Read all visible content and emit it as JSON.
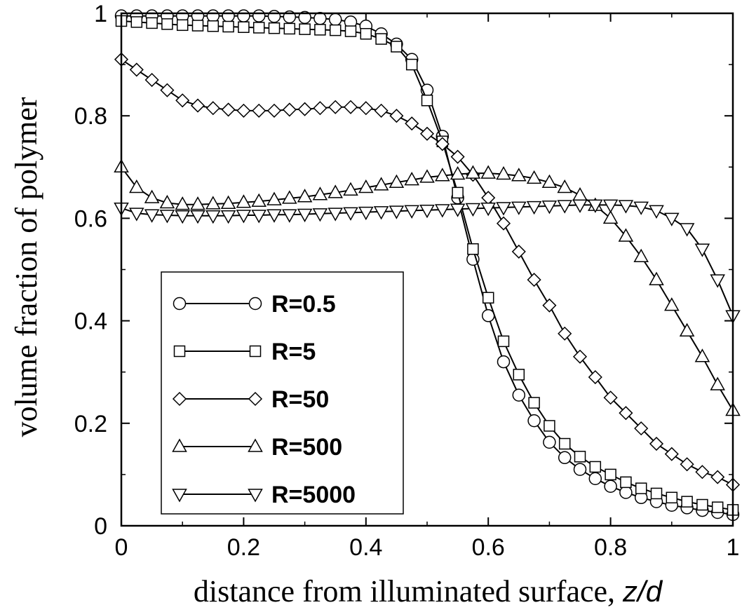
{
  "chart_data": {
    "type": "line",
    "xlabel": "distance from illuminated surface, ",
    "xlabel_var": "z/d",
    "ylabel": "volume fraction of polymer",
    "xlim": [
      0,
      1
    ],
    "ylim": [
      0,
      1
    ],
    "x_ticks": [
      "0",
      "0.2",
      "0.4",
      "0.6",
      "0.8",
      "1"
    ],
    "y_ticks": [
      "0",
      "0.2",
      "0.4",
      "0.6",
      "0.8",
      "1"
    ],
    "legend_position": "lower-left",
    "series": [
      {
        "name": "R=0.5",
        "marker": "circle",
        "points": [
          [
            0,
            0.995
          ],
          [
            0.025,
            0.995
          ],
          [
            0.05,
            0.995
          ],
          [
            0.075,
            0.995
          ],
          [
            0.1,
            0.995
          ],
          [
            0.125,
            0.995
          ],
          [
            0.15,
            0.995
          ],
          [
            0.175,
            0.995
          ],
          [
            0.2,
            0.995
          ],
          [
            0.225,
            0.995
          ],
          [
            0.25,
            0.994
          ],
          [
            0.275,
            0.993
          ],
          [
            0.3,
            0.992
          ],
          [
            0.325,
            0.99
          ],
          [
            0.35,
            0.988
          ],
          [
            0.375,
            0.983
          ],
          [
            0.4,
            0.975
          ],
          [
            0.425,
            0.96
          ],
          [
            0.45,
            0.94
          ],
          [
            0.475,
            0.91
          ],
          [
            0.5,
            0.85
          ],
          [
            0.525,
            0.76
          ],
          [
            0.55,
            0.64
          ],
          [
            0.575,
            0.52
          ],
          [
            0.6,
            0.41
          ],
          [
            0.625,
            0.32
          ],
          [
            0.65,
            0.255
          ],
          [
            0.675,
            0.205
          ],
          [
            0.7,
            0.163
          ],
          [
            0.725,
            0.133
          ],
          [
            0.75,
            0.11
          ],
          [
            0.775,
            0.092
          ],
          [
            0.8,
            0.077
          ],
          [
            0.825,
            0.065
          ],
          [
            0.85,
            0.055
          ],
          [
            0.875,
            0.047
          ],
          [
            0.9,
            0.04
          ],
          [
            0.925,
            0.035
          ],
          [
            0.95,
            0.03
          ],
          [
            0.975,
            0.026
          ],
          [
            1,
            0.022
          ]
        ]
      },
      {
        "name": "R=5",
        "marker": "square",
        "points": [
          [
            0,
            0.985
          ],
          [
            0.025,
            0.983
          ],
          [
            0.05,
            0.981
          ],
          [
            0.075,
            0.979
          ],
          [
            0.1,
            0.977
          ],
          [
            0.125,
            0.976
          ],
          [
            0.15,
            0.975
          ],
          [
            0.175,
            0.974
          ],
          [
            0.2,
            0.973
          ],
          [
            0.225,
            0.972
          ],
          [
            0.25,
            0.971
          ],
          [
            0.275,
            0.97
          ],
          [
            0.3,
            0.969
          ],
          [
            0.325,
            0.968
          ],
          [
            0.35,
            0.967
          ],
          [
            0.375,
            0.965
          ],
          [
            0.4,
            0.96
          ],
          [
            0.425,
            0.95
          ],
          [
            0.45,
            0.935
          ],
          [
            0.475,
            0.9
          ],
          [
            0.5,
            0.83
          ],
          [
            0.525,
            0.75
          ],
          [
            0.55,
            0.65
          ],
          [
            0.575,
            0.54
          ],
          [
            0.6,
            0.445
          ],
          [
            0.625,
            0.36
          ],
          [
            0.65,
            0.295
          ],
          [
            0.675,
            0.24
          ],
          [
            0.7,
            0.195
          ],
          [
            0.725,
            0.16
          ],
          [
            0.75,
            0.135
          ],
          [
            0.775,
            0.115
          ],
          [
            0.8,
            0.1
          ],
          [
            0.825,
            0.085
          ],
          [
            0.85,
            0.073
          ],
          [
            0.875,
            0.063
          ],
          [
            0.9,
            0.055
          ],
          [
            0.925,
            0.047
          ],
          [
            0.95,
            0.041
          ],
          [
            0.975,
            0.036
          ],
          [
            1,
            0.031
          ]
        ]
      },
      {
        "name": "R=50",
        "marker": "diamond",
        "points": [
          [
            0,
            0.91
          ],
          [
            0.025,
            0.89
          ],
          [
            0.05,
            0.87
          ],
          [
            0.075,
            0.85
          ],
          [
            0.1,
            0.83
          ],
          [
            0.125,
            0.82
          ],
          [
            0.15,
            0.815
          ],
          [
            0.175,
            0.812
          ],
          [
            0.2,
            0.81
          ],
          [
            0.225,
            0.81
          ],
          [
            0.25,
            0.81
          ],
          [
            0.275,
            0.812
          ],
          [
            0.3,
            0.813
          ],
          [
            0.325,
            0.815
          ],
          [
            0.35,
            0.817
          ],
          [
            0.375,
            0.817
          ],
          [
            0.4,
            0.815
          ],
          [
            0.425,
            0.81
          ],
          [
            0.45,
            0.8
          ],
          [
            0.475,
            0.785
          ],
          [
            0.5,
            0.765
          ],
          [
            0.525,
            0.745
          ],
          [
            0.55,
            0.72
          ],
          [
            0.575,
            0.685
          ],
          [
            0.6,
            0.64
          ],
          [
            0.625,
            0.59
          ],
          [
            0.65,
            0.535
          ],
          [
            0.675,
            0.48
          ],
          [
            0.7,
            0.43
          ],
          [
            0.725,
            0.375
          ],
          [
            0.75,
            0.33
          ],
          [
            0.775,
            0.29
          ],
          [
            0.8,
            0.25
          ],
          [
            0.825,
            0.22
          ],
          [
            0.85,
            0.19
          ],
          [
            0.875,
            0.16
          ],
          [
            0.9,
            0.14
          ],
          [
            0.925,
            0.12
          ],
          [
            0.95,
            0.105
          ],
          [
            0.975,
            0.095
          ],
          [
            1,
            0.08
          ]
        ]
      },
      {
        "name": "R=500",
        "marker": "triangle-up",
        "points": [
          [
            0,
            0.7
          ],
          [
            0.025,
            0.66
          ],
          [
            0.05,
            0.64
          ],
          [
            0.075,
            0.63
          ],
          [
            0.1,
            0.627
          ],
          [
            0.125,
            0.627
          ],
          [
            0.15,
            0.628
          ],
          [
            0.175,
            0.629
          ],
          [
            0.2,
            0.631
          ],
          [
            0.225,
            0.633
          ],
          [
            0.25,
            0.636
          ],
          [
            0.275,
            0.639
          ],
          [
            0.3,
            0.642
          ],
          [
            0.325,
            0.646
          ],
          [
            0.35,
            0.65
          ],
          [
            0.375,
            0.655
          ],
          [
            0.4,
            0.66
          ],
          [
            0.425,
            0.665
          ],
          [
            0.45,
            0.67
          ],
          [
            0.475,
            0.675
          ],
          [
            0.5,
            0.68
          ],
          [
            0.525,
            0.683
          ],
          [
            0.55,
            0.686
          ],
          [
            0.575,
            0.688
          ],
          [
            0.6,
            0.688
          ],
          [
            0.625,
            0.686
          ],
          [
            0.65,
            0.683
          ],
          [
            0.675,
            0.678
          ],
          [
            0.7,
            0.67
          ],
          [
            0.725,
            0.66
          ],
          [
            0.75,
            0.645
          ],
          [
            0.775,
            0.625
          ],
          [
            0.8,
            0.6
          ],
          [
            0.825,
            0.565
          ],
          [
            0.85,
            0.525
          ],
          [
            0.875,
            0.48
          ],
          [
            0.9,
            0.43
          ],
          [
            0.925,
            0.38
          ],
          [
            0.95,
            0.33
          ],
          [
            0.975,
            0.275
          ],
          [
            1,
            0.225
          ]
        ]
      },
      {
        "name": "R=5000",
        "marker": "triangle-down",
        "points": [
          [
            0,
            0.62
          ],
          [
            0.025,
            0.61
          ],
          [
            0.05,
            0.607
          ],
          [
            0.075,
            0.606
          ],
          [
            0.1,
            0.605
          ],
          [
            0.125,
            0.605
          ],
          [
            0.15,
            0.605
          ],
          [
            0.175,
            0.605
          ],
          [
            0.2,
            0.606
          ],
          [
            0.225,
            0.606
          ],
          [
            0.25,
            0.607
          ],
          [
            0.275,
            0.607
          ],
          [
            0.3,
            0.608
          ],
          [
            0.325,
            0.609
          ],
          [
            0.35,
            0.61
          ],
          [
            0.375,
            0.611
          ],
          [
            0.4,
            0.612
          ],
          [
            0.425,
            0.613
          ],
          [
            0.45,
            0.614
          ],
          [
            0.475,
            0.615
          ],
          [
            0.5,
            0.616
          ],
          [
            0.525,
            0.617
          ],
          [
            0.55,
            0.618
          ],
          [
            0.575,
            0.619
          ],
          [
            0.6,
            0.62
          ],
          [
            0.625,
            0.621
          ],
          [
            0.65,
            0.622
          ],
          [
            0.675,
            0.623
          ],
          [
            0.7,
            0.624
          ],
          [
            0.725,
            0.625
          ],
          [
            0.75,
            0.626
          ],
          [
            0.775,
            0.626
          ],
          [
            0.8,
            0.626
          ],
          [
            0.825,
            0.625
          ],
          [
            0.85,
            0.622
          ],
          [
            0.875,
            0.615
          ],
          [
            0.9,
            0.6
          ],
          [
            0.925,
            0.58
          ],
          [
            0.95,
            0.54
          ],
          [
            0.975,
            0.48
          ],
          [
            1,
            0.41
          ]
        ]
      }
    ]
  }
}
